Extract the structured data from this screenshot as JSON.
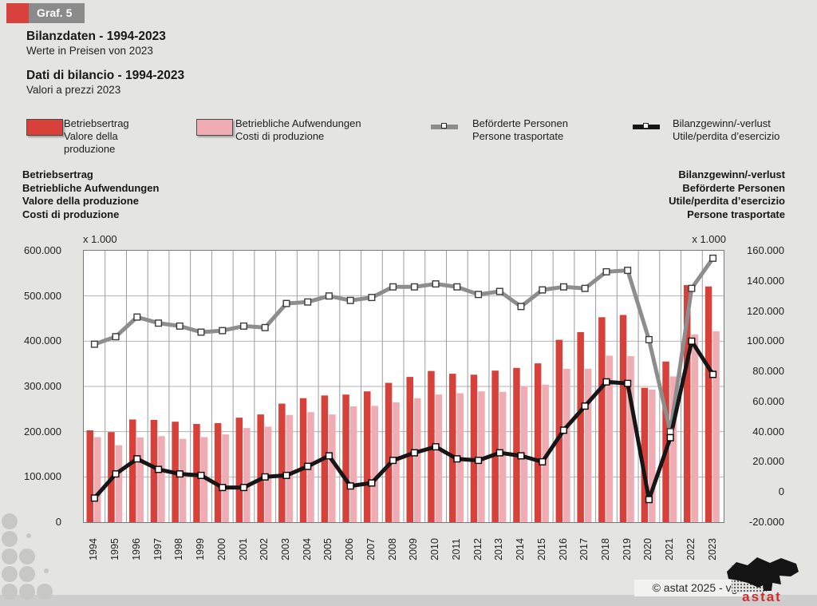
{
  "badge": {
    "label": "Graf. 5"
  },
  "titles": {
    "de_title": "Bilanzdaten - 1994-2023",
    "de_subtitle": "Werte in Preisen von 2023",
    "it_title": "Dati di bilancio - 1994-2023",
    "it_subtitle": "Valori a prezzi 2023"
  },
  "legend": [
    {
      "type": "bar",
      "color": "#d8403a",
      "label_de": "Betriebsertrag",
      "label_it": "Valore della produzione"
    },
    {
      "type": "bar",
      "color": "#efacb3",
      "label_de": "Betriebliche Aufwendungen",
      "label_it": "Costi di produzione"
    },
    {
      "type": "line",
      "color": "#8d8d8d",
      "label_de": "Beförderte Personen",
      "label_it": "Persone trasportate"
    },
    {
      "type": "line",
      "color": "#161616",
      "label_de": "Bilanzgewinn/-verlust",
      "label_it": "Utile/perdita d’esercizio"
    }
  ],
  "axis_headers": {
    "left_lines": [
      "Betriebsertrag",
      "Betriebliche Aufwendungen",
      "Valore della produzione",
      "Costi di produzione"
    ],
    "right_lines": [
      "Bilanzgewinn/-verlust",
      "Beförderte Personen",
      "Utile/perdita d’esercizio",
      "Persone trasportate"
    ]
  },
  "units": {
    "left": "x 1.000",
    "right": "x 1.000"
  },
  "footer": {
    "copyright": "© astat 2025 - vg",
    "logo_text": "astat"
  },
  "colors": {
    "background": "#e4e4e2",
    "plot_bg": "#ffffff",
    "bar_red": "#d8403a",
    "bar_pink": "#efacb3",
    "line_gray": "#8d8d8d",
    "line_black": "#161616",
    "grid_h": "#b3b3b3",
    "grid_v": "#9c9c9c",
    "badge_red": "#d8413c",
    "badge_gray": "#8b8b8b",
    "logo_red": "#d02c2c"
  },
  "chart_data": {
    "type": "bar",
    "subtype": "grouped bars + two lines, dual y-axes",
    "title": "Bilanzdaten - 1994-2023 / Dati di bilancio - 1994-2023 (Werte in Preisen von 2023 / Valori a prezzi 2023)",
    "categories": [
      "1994",
      "1995",
      "1996",
      "1997",
      "1998",
      "1999",
      "2000",
      "2001",
      "2002",
      "2003",
      "2004",
      "2005",
      "2006",
      "2007",
      "2008",
      "2009",
      "2010",
      "2011",
      "2012",
      "2013",
      "2014",
      "2015",
      "2016",
      "2017",
      "2018",
      "2019",
      "2020",
      "2021",
      "2022",
      "2023"
    ],
    "series": [
      {
        "name": "Betriebsertrag / Valore della produzione",
        "type": "bar",
        "axis": "left",
        "color": "#d8403a",
        "values": [
          203000,
          199000,
          227000,
          226000,
          222000,
          217000,
          219000,
          231000,
          238000,
          262000,
          274000,
          280000,
          282000,
          289000,
          308000,
          321000,
          334000,
          328000,
          326000,
          335000,
          341000,
          351000,
          403000,
          420000,
          453000,
          458000,
          297000,
          355000,
          524000,
          521000
        ]
      },
      {
        "name": "Betriebliche Aufwendungen / Costi di produzione",
        "type": "bar",
        "axis": "left",
        "color": "#efacb3",
        "values": [
          188000,
          170000,
          187000,
          190000,
          184000,
          188000,
          194000,
          208000,
          211000,
          237000,
          243000,
          238000,
          256000,
          257000,
          265000,
          274000,
          282000,
          285000,
          289000,
          288000,
          301000,
          304000,
          339000,
          339000,
          368000,
          367000,
          293000,
          322000,
          415000,
          422000
        ]
      },
      {
        "name": "Beförderte Personen / Persone trasportate",
        "type": "line",
        "axis": "right",
        "color": "#8d8d8d",
        "values": [
          98000,
          103000,
          116000,
          112000,
          110000,
          106000,
          107000,
          110000,
          109000,
          125000,
          126000,
          130000,
          127000,
          129000,
          136000,
          136000,
          138000,
          136000,
          131000,
          133000,
          123000,
          134000,
          136000,
          135000,
          146000,
          147000,
          101000,
          40000,
          135000,
          155000
        ]
      },
      {
        "name": "Bilanzgewinn/-verlust / Utile/perdita d’esercizio",
        "type": "line",
        "axis": "right",
        "color": "#161616",
        "values": [
          -4000,
          12000,
          22000,
          15000,
          12000,
          11000,
          3000,
          3000,
          10000,
          11000,
          17000,
          24000,
          4000,
          6000,
          21000,
          26000,
          30000,
          22000,
          21000,
          26000,
          24000,
          20000,
          41000,
          57000,
          73000,
          72000,
          -5000,
          36000,
          100000,
          78000
        ]
      }
    ],
    "left_axis": {
      "min": 0,
      "max": 600000,
      "step": 100000,
      "unit": "x 1.000"
    },
    "right_axis": {
      "min": -20000,
      "max": 160000,
      "step": 20000,
      "unit": "x 1.000"
    },
    "xlabel": "",
    "ylabel_left": "Betriebsertrag / Betriebliche Aufwendungen / Valore della produzione / Costi di produzione",
    "ylabel_right": "Bilanzgewinn/-verlust / Beförderte Personen / Utile/perdita d’esercizio / Persone trasportate",
    "grid": "horizontal lines every 100.000 (left axis), vertical line between every year",
    "legend_position": "top"
  }
}
